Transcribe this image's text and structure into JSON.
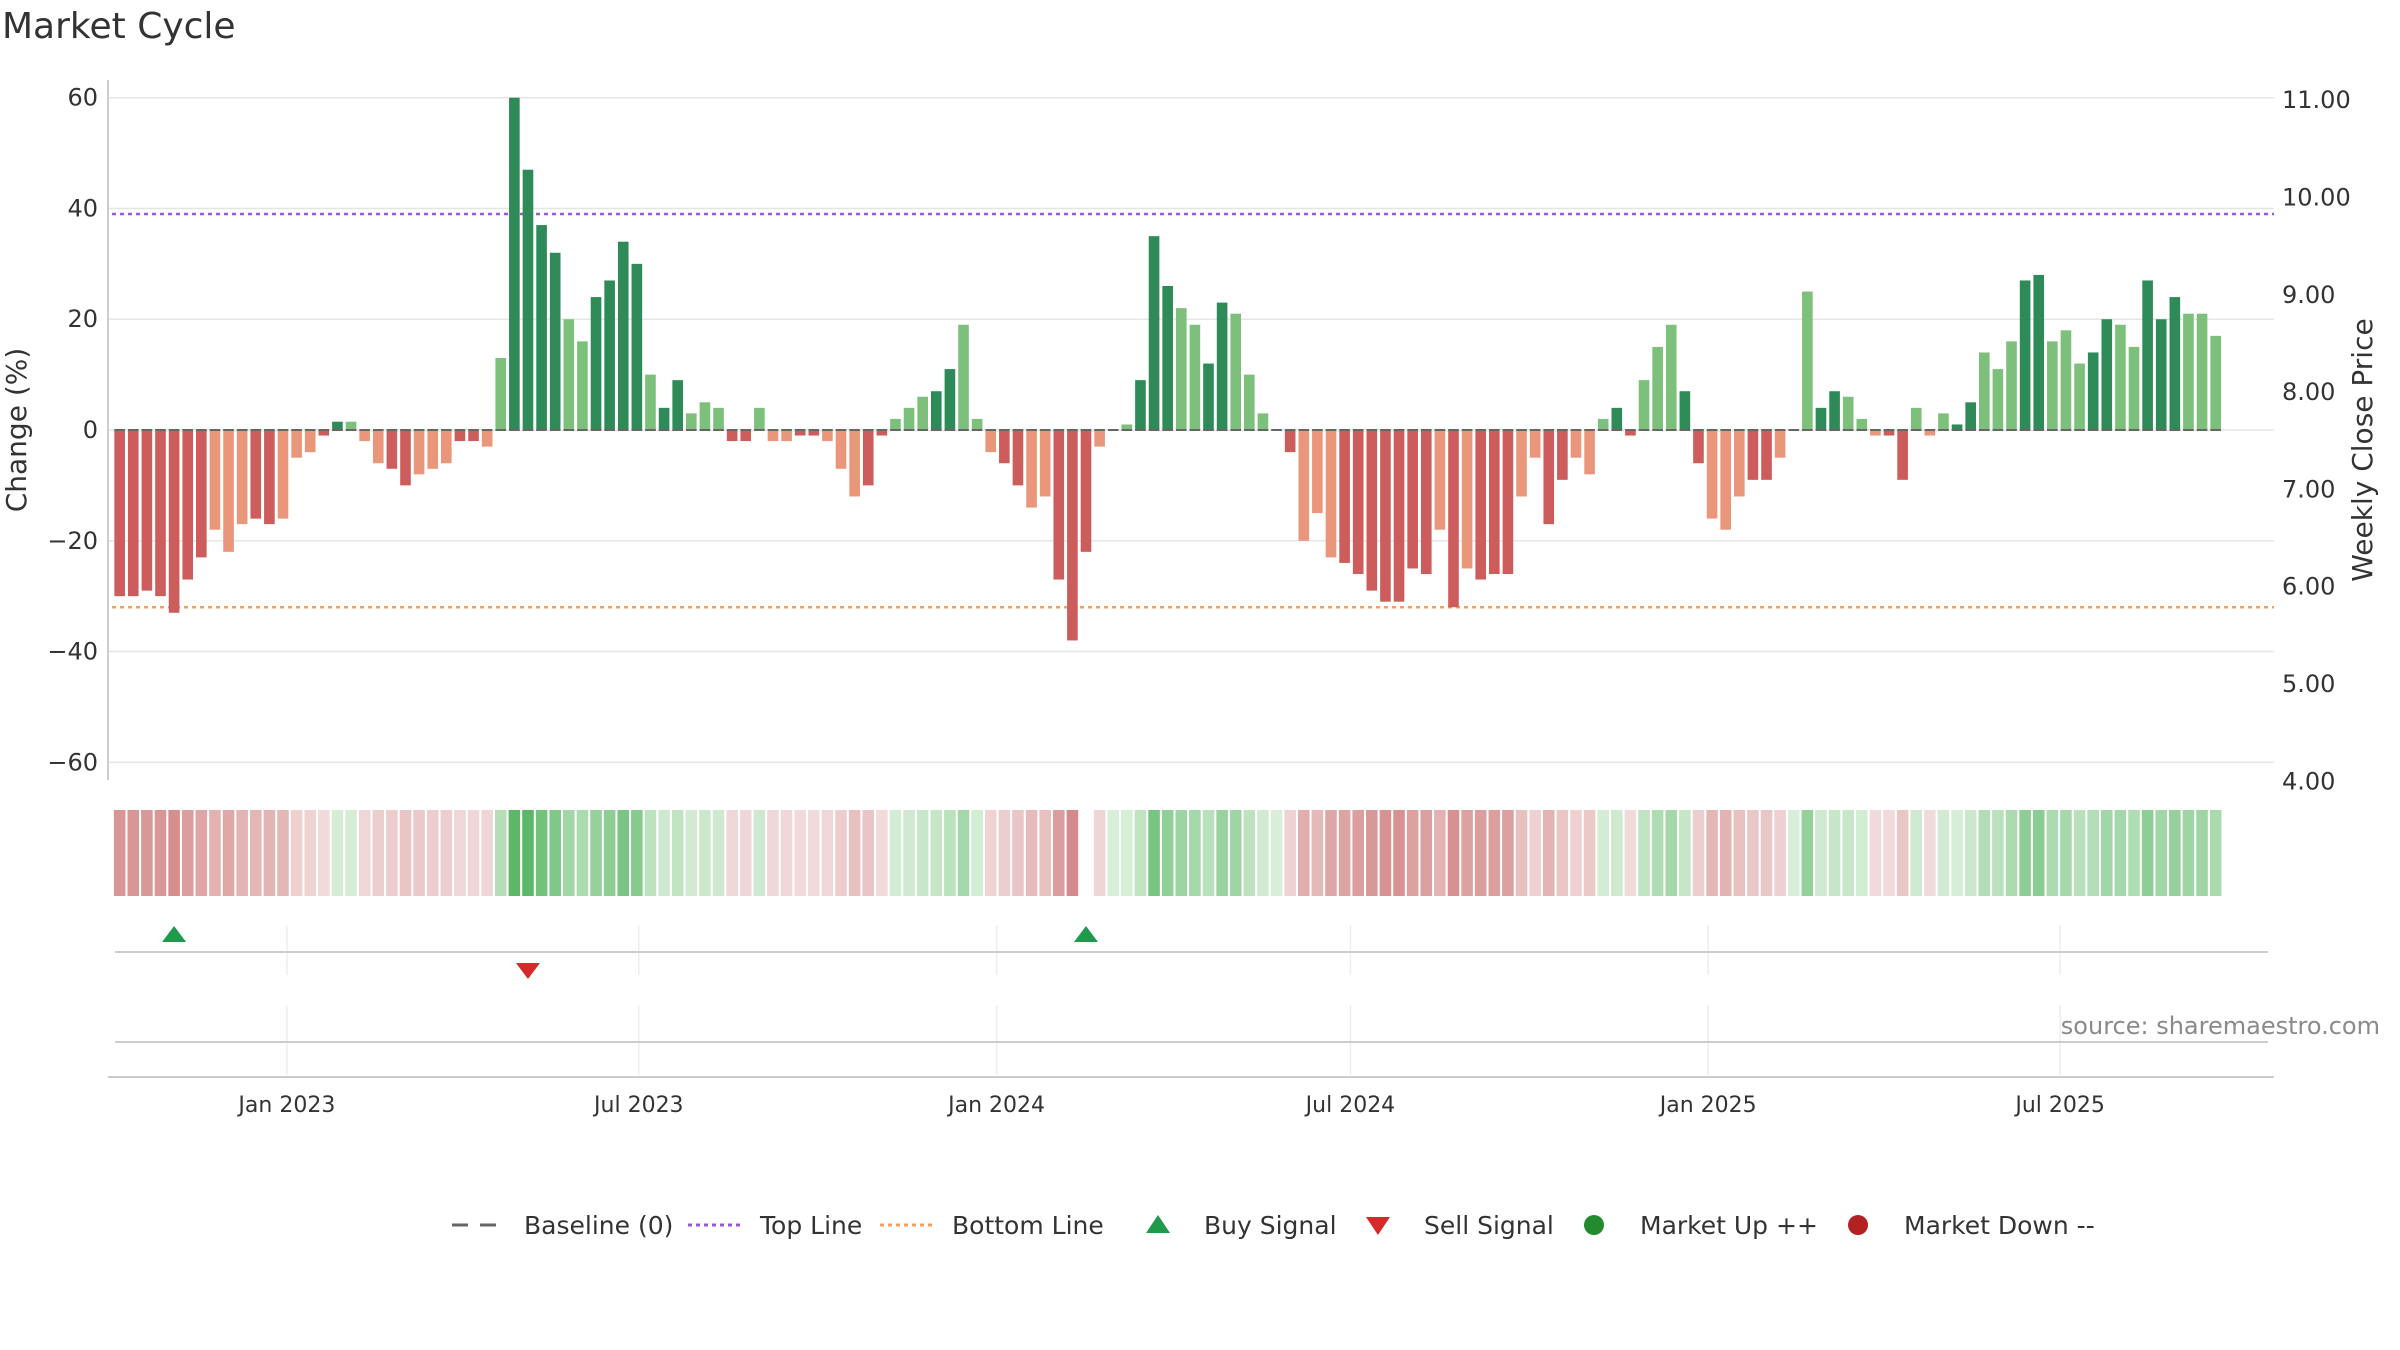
{
  "chart_data": {
    "type": "bar",
    "title": "Market Cycle",
    "ylabel": "Change (%)",
    "y2label": "Weekly Close Price",
    "ylim": [
      -65,
      65
    ],
    "y2lim": [
      3.9,
      11.3
    ],
    "yticks": [
      60,
      40,
      20,
      0,
      -20,
      -40,
      -60
    ],
    "yticklabels": [
      "60",
      "40",
      "20",
      "0",
      "−20",
      "−40",
      "−60"
    ],
    "y2ticks": [
      11.0,
      10.0,
      9.0,
      8.0,
      7.0,
      6.0,
      5.0,
      4.0
    ],
    "y2ticklabels": [
      "11.00",
      "10.00",
      "9.00",
      "8.00",
      "7.00",
      "6.00",
      "5.00",
      "4.00"
    ],
    "top_line": 39,
    "bottom_line": -32,
    "baseline": 0,
    "x_start": "2022-10-01",
    "x_end": "2025-10-19",
    "week_start": "2022-10-07",
    "xticks": [
      "2023-01-01",
      "2023-07-01",
      "2024-01-01",
      "2024-07-01",
      "2025-01-01",
      "2025-07-01"
    ],
    "xticklabels": [
      "Jan 2023",
      "Jul 2023",
      "Jan 2024",
      "Jul 2024",
      "Jan 2025",
      "Jul 2025"
    ],
    "series": [
      {
        "values": [
          -30,
          -30,
          -29,
          -30,
          -33,
          -27,
          -23,
          -18,
          -22,
          -17,
          -16,
          -17,
          -16,
          -5,
          -4,
          -1,
          1.5,
          1.5,
          -2,
          -6,
          -7,
          -10,
          -8,
          -7,
          -6,
          -2,
          -2,
          -3,
          13,
          60,
          47,
          37,
          32,
          20,
          16,
          24,
          27,
          34,
          30,
          10,
          4,
          9,
          3,
          5,
          4,
          -2,
          -2,
          4,
          -2,
          -2,
          -1,
          -1,
          -2,
          -7,
          -12,
          -10,
          -1,
          2,
          4,
          6,
          7,
          11,
          19,
          2,
          -4,
          -6,
          -10,
          -14,
          -12,
          -27,
          -38,
          -22,
          -3,
          0,
          1,
          9,
          35,
          26,
          22,
          19,
          12,
          23,
          21,
          10,
          3,
          0,
          -4,
          -20,
          -15,
          -23,
          -24,
          -26,
          -29,
          -31,
          -31,
          -25,
          -26,
          -18,
          -32,
          -25,
          -27,
          -26,
          -26,
          -12,
          -5,
          -17,
          -9,
          -5,
          -8,
          2,
          4,
          -1,
          9,
          15,
          19,
          7,
          -6,
          -16,
          -18,
          -12,
          -9,
          -9,
          -5,
          0,
          25,
          4,
          7,
          6,
          2,
          -1,
          -1,
          -9,
          4,
          -1,
          3,
          1,
          5,
          14,
          11,
          16,
          27,
          28,
          16,
          18,
          12,
          14,
          20,
          19,
          15,
          27,
          20,
          24,
          21,
          21,
          17
        ]
      }
    ],
    "band_values": [
      -30,
      -30,
      -29,
      -30,
      -33,
      -27,
      -23,
      -18,
      -22,
      -17,
      -16,
      -17,
      -16,
      -5,
      -4,
      -1,
      1.5,
      1.5,
      -2,
      -6,
      -7,
      -10,
      -8,
      -7,
      -6,
      -2,
      -2,
      -3,
      13,
      60,
      47,
      37,
      32,
      20,
      16,
      24,
      27,
      34,
      30,
      10,
      4,
      9,
      3,
      5,
      4,
      -2,
      -2,
      4,
      -2,
      -2,
      -1,
      -1,
      -2,
      -7,
      -12,
      -10,
      -1,
      2,
      4,
      6,
      7,
      11,
      19,
      2,
      -4,
      -6,
      -10,
      -14,
      -12,
      -27,
      -38,
      null,
      -3,
      0,
      1,
      9,
      35,
      26,
      22,
      19,
      12,
      23,
      21,
      10,
      3,
      0,
      -4,
      -20,
      -15,
      -23,
      -24,
      -26,
      -29,
      -31,
      -31,
      -25,
      -26,
      -18,
      -32,
      -25,
      -27,
      -26,
      -26,
      -12,
      -5,
      -17,
      -9,
      -5,
      -8,
      2,
      4,
      -1,
      9,
      15,
      19,
      7,
      -6,
      -16,
      -18,
      -12,
      -9,
      -9,
      -5,
      0,
      25,
      4,
      7,
      6,
      2,
      -1,
      -1,
      -9,
      4,
      -1,
      3,
      1,
      5,
      14,
      11,
      16,
      27,
      28,
      16,
      18,
      12,
      14,
      20,
      19,
      15,
      27,
      20,
      24,
      21,
      21,
      17
    ],
    "buy_signals": [
      "2022-11-04",
      "2024-02-16"
    ],
    "sell_signals": [
      "2023-05-05"
    ],
    "legend": [
      {
        "label": "Baseline (0)",
        "kind": "dash",
        "color": "#666666"
      },
      {
        "label": "Top Line",
        "kind": "dot",
        "color": "#9b59d0"
      },
      {
        "label": "Bottom Line",
        "kind": "dot",
        "color": "#f0a060"
      },
      {
        "label": "Buy Signal",
        "kind": "tri-up",
        "color": "#1f9a4a"
      },
      {
        "label": "Sell Signal",
        "kind": "tri-down",
        "color": "#d42a2a"
      },
      {
        "label": "Market Up ++",
        "kind": "circle",
        "color": "#238a2e"
      },
      {
        "label": "Market Down --",
        "kind": "circle",
        "color": "#b22222"
      }
    ],
    "colors": {
      "up_strong": "#2e8b57",
      "up_light": "#7cc07c",
      "down_strong": "#cd5c5c",
      "down_light": "#e9967a",
      "top_line": "#9b59d0",
      "bottom_line": "#f0a060",
      "buy": "#1f9a4a",
      "sell": "#d42a2a"
    }
  },
  "source": "source: sharemaestro.com"
}
